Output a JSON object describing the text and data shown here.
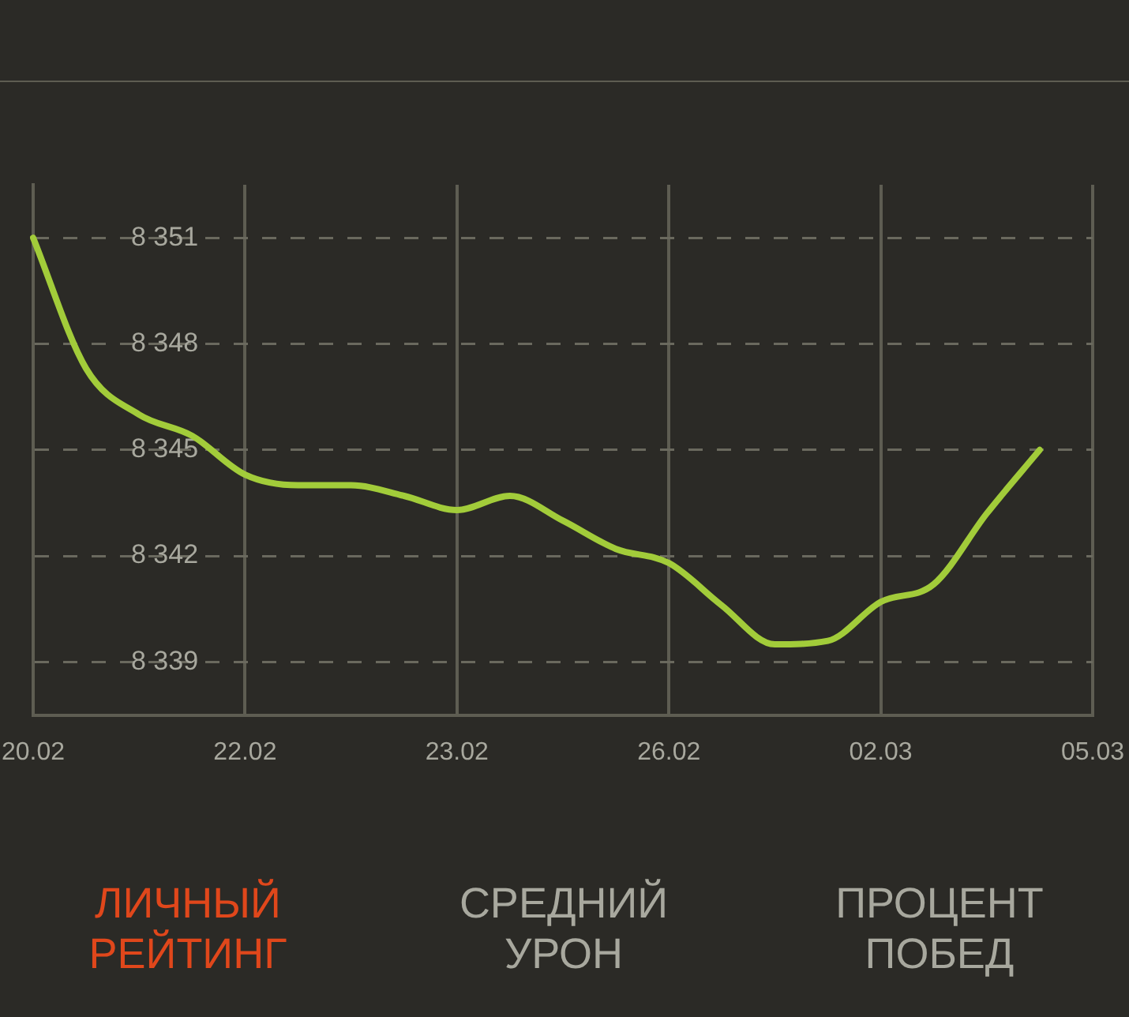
{
  "chart_data": {
    "type": "line",
    "categories": [
      "20.02",
      null,
      null,
      null,
      "22.02",
      null,
      null,
      null,
      "23.02",
      null,
      null,
      null,
      "26.02",
      null,
      null,
      null,
      "02.03",
      null,
      null,
      null,
      "05.03"
    ],
    "series": [
      {
        "color": "#a2cc3a",
        "values": [
          8351,
          8347.3,
          8346.0,
          8345.4,
          8344.3,
          8344.0,
          8344.0,
          8343.7,
          8343.3,
          8343.7,
          8343.0,
          8342.2,
          8341.8,
          8340.6,
          8339.5,
          8339.6,
          8340.7,
          8341.2,
          8343.2,
          8345.0,
          null
        ]
      }
    ],
    "ylim": [
      8337.5,
      8352.5
    ],
    "yticks": [
      {
        "value": 8339,
        "label": "8 339"
      },
      {
        "value": 8342,
        "label": "8 342"
      },
      {
        "value": 8345,
        "label": "8 345"
      },
      {
        "value": 8348,
        "label": "8 348"
      },
      {
        "value": 8351,
        "label": "8 351"
      }
    ],
    "grid": true,
    "legend": false,
    "marker": "none",
    "line_style": "solid",
    "annotations": [
      "ЛИЧНЫЙ РЕЙТИНГ",
      "СРЕДНИЙ УРОН",
      "ПРОЦЕНТ ПОБЕД"
    ]
  }
}
